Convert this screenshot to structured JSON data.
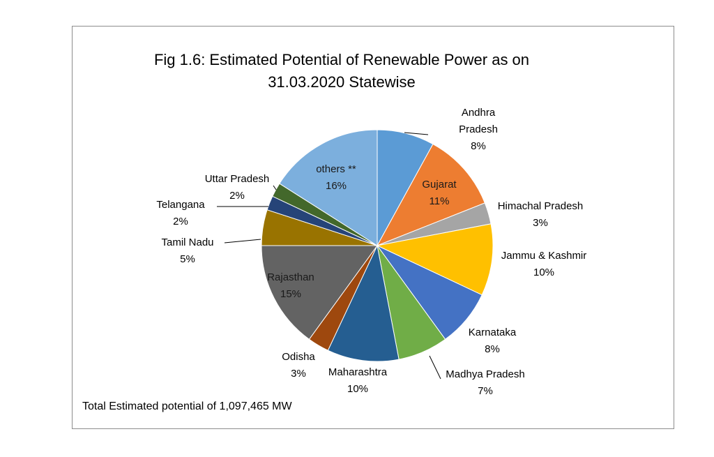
{
  "chart_data": {
    "type": "pie",
    "title_lines": [
      "Fig 1.6: Estimated Potential of Renewable Power as on",
      "31.03.2020 Statewise"
    ],
    "footnote": "Total Estimated potential of 1,097,465 MW",
    "start_angle_deg": 0,
    "direction": "clockwise",
    "slices": [
      {
        "label_lines": [
          "Andhra",
          "Pradesh"
        ],
        "pct_label": "8%",
        "value": 8,
        "color": "#5b9bd5"
      },
      {
        "label_lines": [
          "Gujarat"
        ],
        "pct_label": "11%",
        "value": 11,
        "color": "#ed7d31"
      },
      {
        "label_lines": [
          "Himachal Pradesh"
        ],
        "pct_label": "3%",
        "value": 3,
        "color": "#a5a5a5"
      },
      {
        "label_lines": [
          "Jammu & Kashmir"
        ],
        "pct_label": "10%",
        "value": 10,
        "color": "#ffc000"
      },
      {
        "label_lines": [
          "Karnataka"
        ],
        "pct_label": "8%",
        "value": 8,
        "color": "#4472c4"
      },
      {
        "label_lines": [
          "Madhya Pradesh"
        ],
        "pct_label": "7%",
        "value": 7,
        "color": "#70ad47"
      },
      {
        "label_lines": [
          "Maharashtra"
        ],
        "pct_label": "10%",
        "value": 10,
        "color": "#255e91"
      },
      {
        "label_lines": [
          "Odisha"
        ],
        "pct_label": "3%",
        "value": 3,
        "color": "#9e480e"
      },
      {
        "label_lines": [
          "Rajasthan"
        ],
        "pct_label": "15%",
        "value": 15,
        "color": "#636363"
      },
      {
        "label_lines": [
          "Tamil Nadu"
        ],
        "pct_label": "5%",
        "value": 5,
        "color": "#997300"
      },
      {
        "label_lines": [
          "Telangana"
        ],
        "pct_label": "2%",
        "value": 2,
        "color": "#264478"
      },
      {
        "label_lines": [
          "Uttar Pradesh"
        ],
        "pct_label": "2%",
        "value": 2,
        "color": "#43682b"
      },
      {
        "label_lines": [
          "others **"
        ],
        "pct_label": "16%",
        "value": 16,
        "color": "#7cafdd"
      }
    ]
  }
}
